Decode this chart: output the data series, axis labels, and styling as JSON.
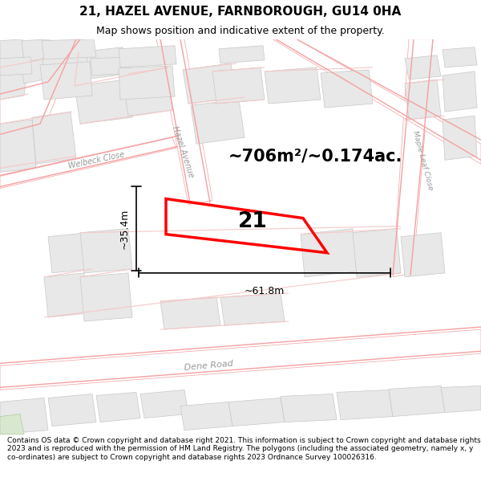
{
  "title": "21, HAZEL AVENUE, FARNBOROUGH, GU14 0HA",
  "subtitle": "Map shows position and indicative extent of the property.",
  "footer": "Contains OS data © Crown copyright and database right 2021. This information is subject to Crown copyright and database rights 2023 and is reproduced with the permission of HM Land Registry. The polygons (including the associated geometry, namely x, y co-ordinates) are subject to Crown copyright and database rights 2023 Ordnance Survey 100026316.",
  "map_bg": "#ffffff",
  "building_fill": "#e8e8e8",
  "building_edge": "#c8c8c8",
  "pink": "#f5a0a0",
  "light_pink": "#f5c8c8",
  "highlight_edge": "#ff0000",
  "highlight_lw": 2.5,
  "label_number": "21",
  "area_label": "~706m²/~0.174ac.",
  "dim_width": "~61.8m",
  "dim_height": "~35.4m",
  "title_fontsize": 11,
  "subtitle_fontsize": 9,
  "footer_fontsize": 6.5,
  "road_label_color": "#888888",
  "street_name_color": "#999999"
}
